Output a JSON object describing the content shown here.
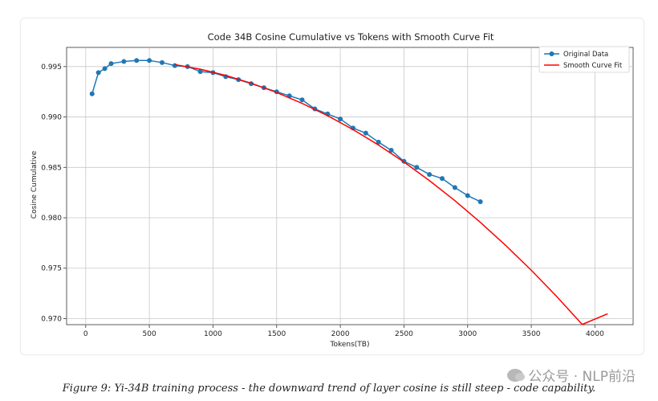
{
  "figure": {
    "caption": "Figure 9: Yi-34B training process - the downward trend of layer cosine is still steep - code capability.",
    "watermark": "公众号 · NLP前沿"
  },
  "chart_data": {
    "type": "line",
    "title": "Code 34B Cosine Cumulative vs Tokens with Smooth Curve Fit",
    "xlabel": "Tokens(TB)",
    "ylabel": "Cosine Cumulative",
    "xlim": [
      -150,
      4300
    ],
    "ylim": [
      0.9694,
      0.9969
    ],
    "xticks": [
      0,
      500,
      1000,
      1500,
      2000,
      2500,
      3000,
      3500,
      4000
    ],
    "yticks": [
      0.97,
      0.975,
      0.98,
      0.985,
      0.99,
      0.995
    ],
    "ytick_labels": [
      "0.970",
      "0.975",
      "0.980",
      "0.985",
      "0.990",
      "0.995"
    ],
    "grid": true,
    "legend_position": "top-right",
    "series": [
      {
        "name": "Original Data",
        "color": "#1f77b4",
        "marker": "circle",
        "x": [
          50,
          100,
          150,
          200,
          300,
          400,
          500,
          600,
          700,
          800,
          900,
          1000,
          1100,
          1200,
          1300,
          1400,
          1500,
          1600,
          1700,
          1800,
          1900,
          2000,
          2100,
          2200,
          2300,
          2400,
          2500,
          2600,
          2700,
          2800,
          2900,
          3000,
          3100
        ],
        "y": [
          0.9923,
          0.9944,
          0.9948,
          0.9953,
          0.9955,
          0.9956,
          0.9956,
          0.9954,
          0.9951,
          0.995,
          0.9945,
          0.9944,
          0.994,
          0.9937,
          0.9933,
          0.9929,
          0.9925,
          0.9921,
          0.9917,
          0.9908,
          0.9903,
          0.9898,
          0.9889,
          0.9884,
          0.9875,
          0.9867,
          0.9856,
          0.985,
          0.9843,
          0.9839,
          0.983,
          0.9822,
          0.9816
        ]
      },
      {
        "name": "Smooth Curve Fit",
        "color": "#ff0000",
        "marker": "none",
        "x": [
          700,
          900,
          1100,
          1300,
          1500,
          1700,
          1900,
          2100,
          2300,
          2500,
          2700,
          2900,
          3100,
          3300,
          3500,
          3700,
          3900,
          4100
        ],
        "y": [
          0.9952,
          0.99474,
          0.99412,
          0.99335,
          0.99243,
          0.99135,
          0.99013,
          0.98875,
          0.98722,
          0.98553,
          0.98369,
          0.9817,
          0.97955,
          0.97725,
          0.9748,
          0.97219,
          0.96942,
          0.97048
        ]
      }
    ]
  }
}
